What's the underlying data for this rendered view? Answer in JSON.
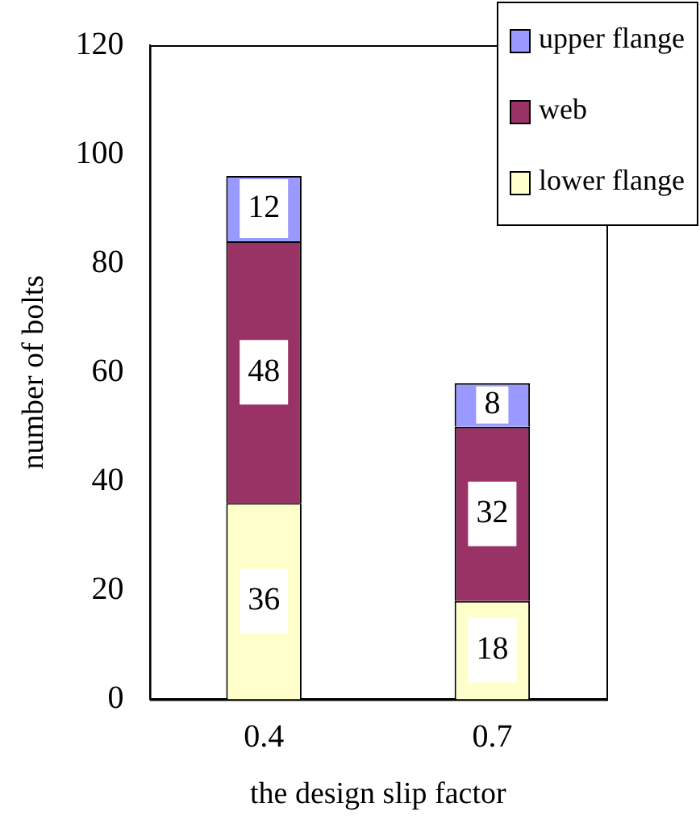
{
  "chart_data": {
    "type": "bar",
    "stacked": true,
    "xlabel": "the design slip factor",
    "ylabel": "number of bolts",
    "categories": [
      "0.4",
      "0.7"
    ],
    "series": [
      {
        "name": "lower flange",
        "color": "#ffffcc",
        "values": [
          36,
          18
        ]
      },
      {
        "name": "web",
        "color": "#993366",
        "values": [
          48,
          32
        ]
      },
      {
        "name": "upper flange",
        "color": "#9999ff",
        "values": [
          12,
          8
        ]
      }
    ],
    "ylim": [
      0,
      120
    ],
    "yticks": [
      0,
      20,
      40,
      60,
      80,
      100,
      120
    ],
    "data_labels": true,
    "legend": "top right",
    "grid": false
  }
}
